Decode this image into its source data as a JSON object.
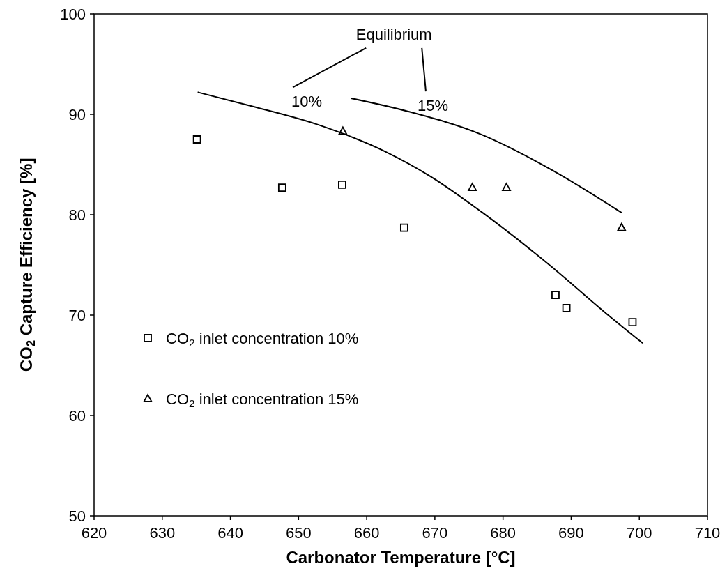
{
  "chart_data": {
    "type": "scatter",
    "xlabel": "Carbonator Temperature [°C]",
    "ylabel": "CO$_{2}$ Capture Efficiency [%]",
    "xlim": [
      620,
      710
    ],
    "xticks": [
      620,
      630,
      640,
      650,
      660,
      670,
      680,
      690,
      700,
      710
    ],
    "ylim": [
      50,
      100
    ],
    "yticks": [
      50,
      60,
      70,
      80,
      90,
      100
    ],
    "grid": false,
    "legend": "left",
    "series": [
      {
        "name": "CO$_{2}$ inlet concentration 10%",
        "marker": "square",
        "color": "#000000",
        "x": [
          635.1,
          647.6,
          656.4,
          665.5,
          687.7,
          689.3,
          699.0
        ],
        "values": [
          87.5,
          82.7,
          83.0,
          78.7,
          72.0,
          70.7,
          69.3
        ]
      },
      {
        "name": "CO$_{2}$ inlet concentration 15%",
        "marker": "triangle",
        "color": "#000000",
        "x": [
          656.5,
          675.5,
          680.5,
          697.4
        ],
        "values": [
          88.3,
          82.7,
          82.7,
          78.7
        ]
      },
      {
        "type": "line",
        "marker": "none",
        "line_style": "solid",
        "color": "#000000",
        "x": [
          635.2,
          642.6,
          652.7,
          662.7,
          669.4,
          676.8,
          686.8,
          694.9,
          700.5
        ],
        "values": [
          92.2,
          90.9,
          89.0,
          86.3,
          83.8,
          80.3,
          75.0,
          70.3,
          67.2
        ]
      },
      {
        "type": "line",
        "marker": "none",
        "line_style": "solid",
        "color": "#000000",
        "x": [
          657.7,
          666.0,
          676.8,
          686.8,
          697.4
        ],
        "values": [
          91.6,
          90.3,
          88.0,
          84.6,
          80.2
        ]
      }
    ],
    "annotations": [
      "Equilibrium",
      "10%",
      "15%"
    ]
  }
}
